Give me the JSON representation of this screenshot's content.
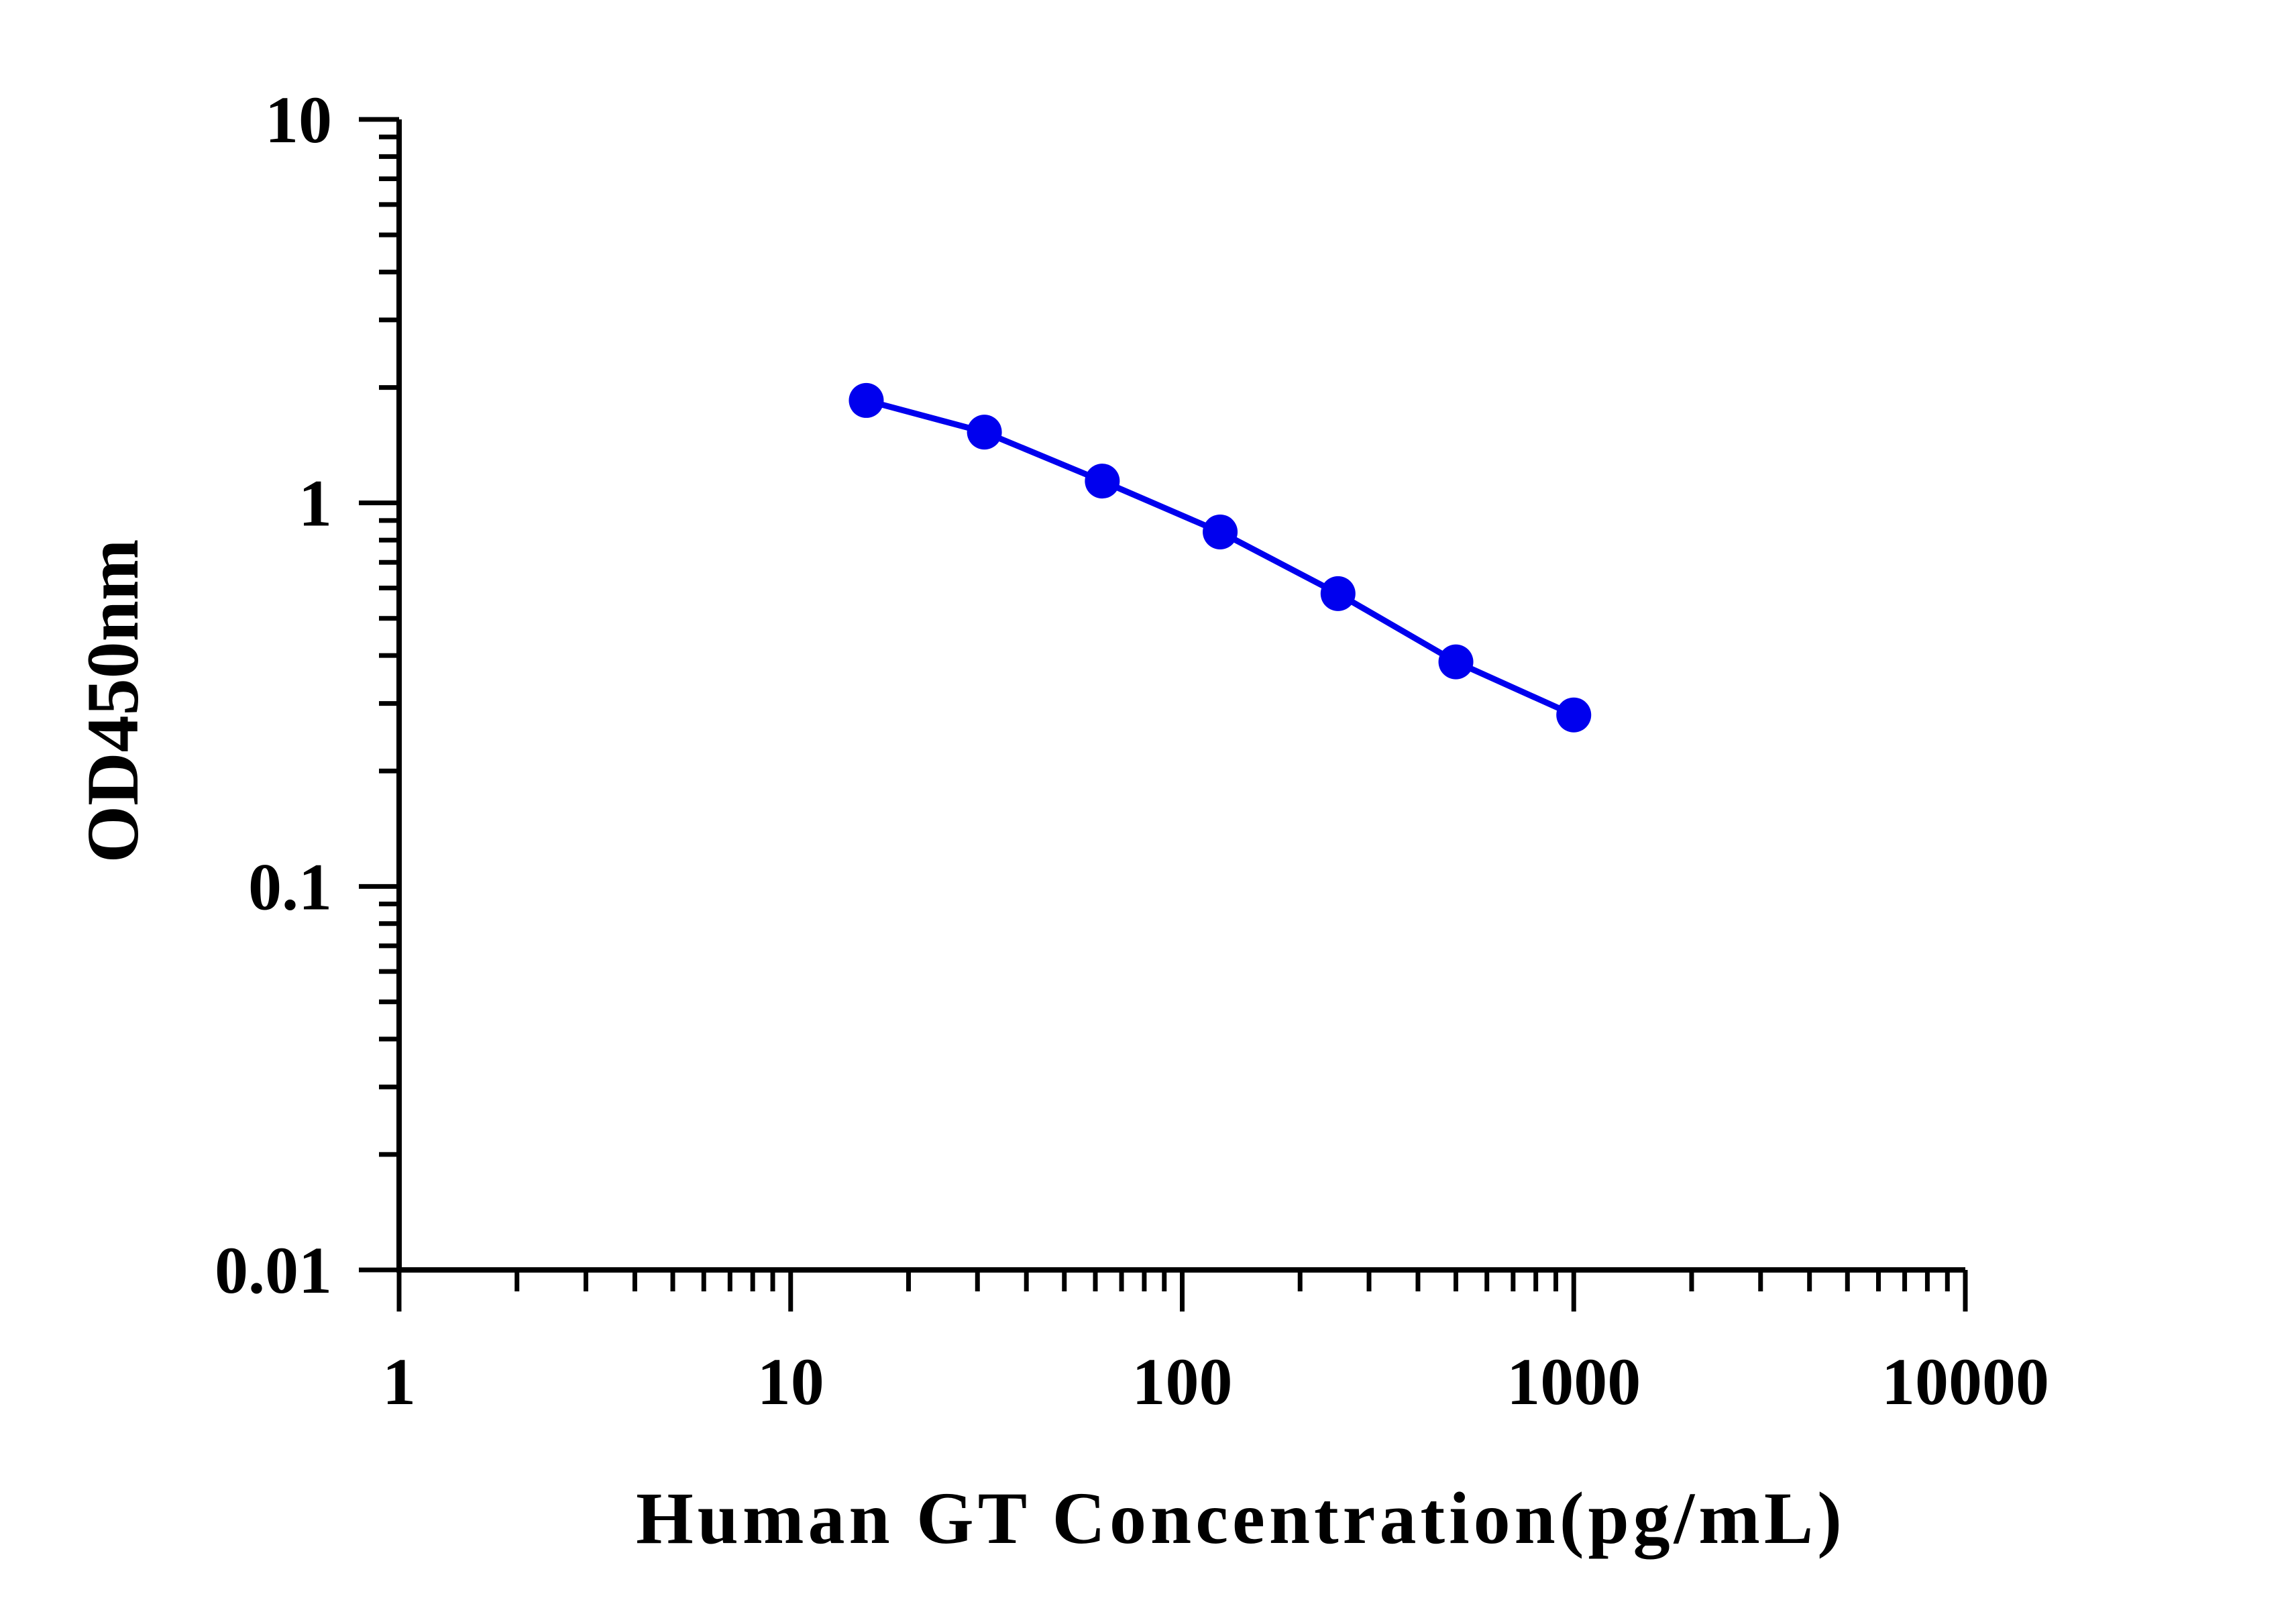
{
  "chart_data": {
    "type": "line",
    "xlabel": "Human GT Concentration(pg/mL)",
    "ylabel": "OD450nm",
    "xscale": "log",
    "yscale": "log",
    "xlim": [
      1,
      10000
    ],
    "ylim": [
      0.01,
      10
    ],
    "xticks": [
      "1",
      "10",
      "100",
      "1000",
      "10000"
    ],
    "yticks": [
      "0.01",
      "0.1",
      "1",
      "10"
    ],
    "grid": false,
    "legend": "none",
    "series": [
      {
        "x": [
          15.6,
          31.25,
          62.5,
          125,
          250,
          500,
          1000
        ],
        "y": [
          1.85,
          1.53,
          1.14,
          0.84,
          0.58,
          0.385,
          0.28
        ],
        "color": "#0000ee",
        "marker": "circle"
      }
    ]
  }
}
